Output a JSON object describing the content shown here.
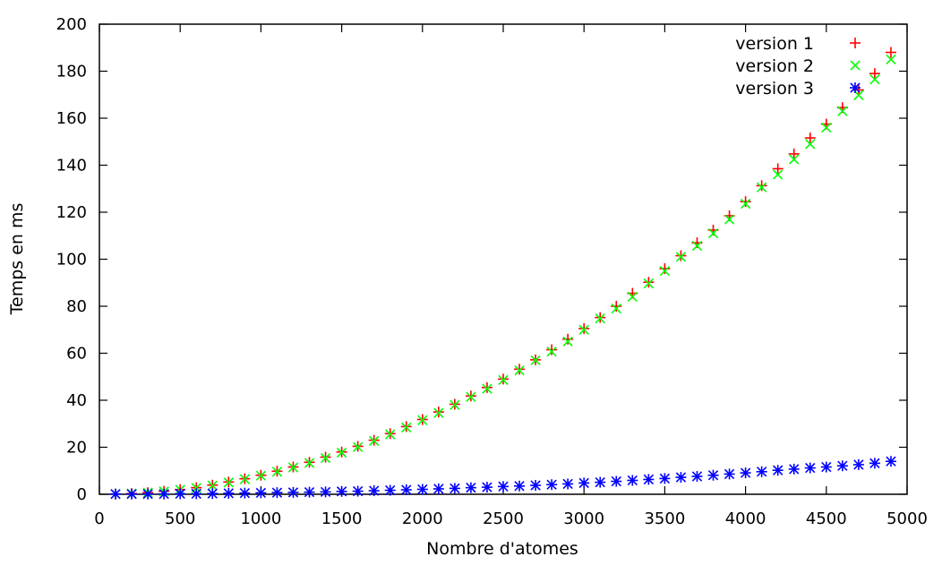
{
  "chart_data": {
    "type": "scatter",
    "title": "",
    "xlabel": "Nombre d'atomes",
    "ylabel": "Temps en ms",
    "xlim": [
      0,
      5000
    ],
    "ylim": [
      0,
      200
    ],
    "xticks": [
      "0",
      "500",
      "1000",
      "1500",
      "2000",
      "2500",
      "3000",
      "3500",
      "4000",
      "4500",
      "5000"
    ],
    "yticks": [
      "0",
      "20",
      "40",
      "60",
      "80",
      "100",
      "120",
      "140",
      "160",
      "180",
      "200"
    ],
    "grid": false,
    "legend_position": "top-right",
    "series": [
      {
        "name": "version 1",
        "marker": "plus",
        "color": "#ff0000",
        "x": [
          100,
          200,
          300,
          400,
          500,
          600,
          700,
          800,
          900,
          1000,
          1100,
          1200,
          1300,
          1400,
          1500,
          1600,
          1700,
          1800,
          1900,
          2000,
          2100,
          2200,
          2300,
          2400,
          2500,
          2600,
          2700,
          2800,
          2900,
          3000,
          3100,
          3200,
          3300,
          3400,
          3500,
          3600,
          3700,
          3800,
          3900,
          4000,
          4100,
          4200,
          4300,
          4400,
          4500,
          4600,
          4700,
          4800,
          4900
        ],
        "y": [
          0.1,
          0.3,
          0.7,
          1.3,
          2,
          2.8,
          3.9,
          5.2,
          6.6,
          8.1,
          9.8,
          11.6,
          13.6,
          15.8,
          18,
          20.4,
          23,
          25.8,
          28.8,
          31.8,
          35,
          38.3,
          41.8,
          45.4,
          49,
          53.2,
          57.2,
          61.5,
          66,
          70.5,
          75.2,
          80,
          85.5,
          90.2,
          96,
          101.5,
          107,
          112.4,
          118.5,
          124.5,
          131.3,
          138.5,
          144.8,
          151.6,
          157.5,
          164.5,
          172,
          179,
          188
        ]
      },
      {
        "name": "version 2",
        "marker": "cross",
        "color": "#00ff00",
        "x": [
          100,
          200,
          300,
          400,
          500,
          600,
          700,
          800,
          900,
          1000,
          1100,
          1200,
          1300,
          1400,
          1500,
          1600,
          1700,
          1800,
          1900,
          2000,
          2100,
          2200,
          2300,
          2400,
          2500,
          2600,
          2700,
          2800,
          2900,
          3000,
          3100,
          3200,
          3300,
          3400,
          3500,
          3600,
          3700,
          3800,
          3900,
          4000,
          4100,
          4200,
          4300,
          4400,
          4500,
          4600,
          4700,
          4800,
          4900
        ],
        "y": [
          0.1,
          0.3,
          0.7,
          1.2,
          1.9,
          2.7,
          3.7,
          5,
          6.4,
          7.9,
          9.6,
          11.4,
          13.3,
          15.4,
          17.7,
          20.1,
          22.7,
          25.5,
          28.4,
          31.5,
          34.6,
          38,
          41.4,
          44.9,
          48.6,
          52.7,
          57,
          60.7,
          65,
          70,
          74.8,
          79,
          84,
          89.7,
          95,
          101,
          105.7,
          111,
          116.9,
          123.6,
          130.6,
          136,
          142.5,
          149,
          156,
          163,
          169.8,
          176.5,
          185
        ]
      },
      {
        "name": "version 3",
        "marker": "asterisk",
        "color": "#0000ff",
        "x": [
          100,
          200,
          300,
          400,
          500,
          600,
          700,
          800,
          900,
          1000,
          1100,
          1200,
          1300,
          1400,
          1500,
          1600,
          1700,
          1800,
          1900,
          2000,
          2100,
          2200,
          2300,
          2400,
          2500,
          2600,
          2700,
          2800,
          2900,
          3000,
          3100,
          3200,
          3300,
          3400,
          3500,
          3600,
          3700,
          3800,
          3900,
          4000,
          4100,
          4200,
          4300,
          4400,
          4500,
          4600,
          4700,
          4800,
          4900
        ],
        "y": [
          0.1,
          0.1,
          0.1,
          0.1,
          0.2,
          0.2,
          0.3,
          0.4,
          0.5,
          0.6,
          0.7,
          0.8,
          0.9,
          1,
          1.2,
          1.3,
          1.5,
          1.7,
          1.9,
          2.1,
          2.3,
          2.5,
          2.8,
          3,
          3.3,
          3.5,
          3.8,
          4.1,
          4.4,
          4.8,
          5.1,
          5.5,
          5.9,
          6.3,
          6.7,
          7.2,
          7.6,
          8.1,
          8.6,
          9.1,
          9.6,
          10.2,
          10.7,
          11.2,
          11.6,
          12.1,
          12.6,
          13.2,
          14
        ]
      }
    ]
  }
}
